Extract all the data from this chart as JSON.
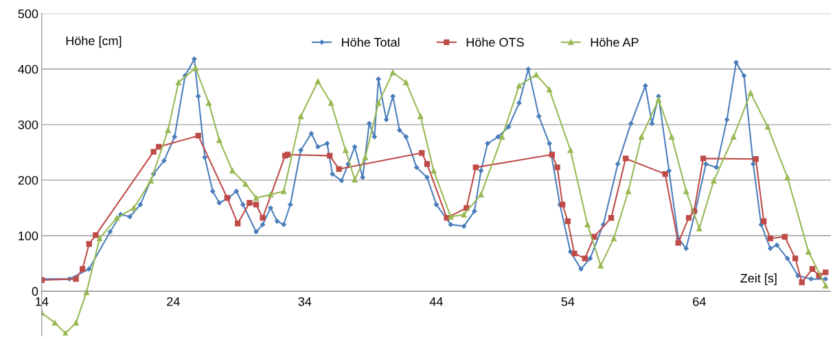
{
  "chart_data": {
    "type": "line",
    "xlabel": "Zeit [s]",
    "ylabel": "Höhe [cm]",
    "xlim": [
      14,
      74
    ],
    "xticks": [
      14,
      24,
      34,
      44,
      54,
      64
    ],
    "ylim": [
      -80,
      500
    ],
    "yticks": [
      0,
      100,
      200,
      300,
      400,
      500
    ],
    "grid": "y",
    "legend": "top",
    "series": [
      {
        "name": "Höhe Total",
        "color": "#4a7ebb",
        "marker": "diamond",
        "x": [
          14,
          16.1,
          17.6,
          19.2,
          20,
          20.7,
          21.5,
          22.5,
          23.3,
          24.1,
          24.9,
          25.6,
          25.9,
          26.4,
          27,
          27.5,
          28.2,
          28.8,
          29.3,
          30.3,
          30.8,
          31.4,
          31.9,
          32.4,
          32.9,
          33.7,
          34.5,
          35,
          35.7,
          36.1,
          36.8,
          37.3,
          37.8,
          38.4,
          38.9,
          39.3,
          39.6,
          40.2,
          40.7,
          41.2,
          41.7,
          42.5,
          43.3,
          44,
          45.1,
          46.1,
          46.9,
          47.4,
          47.9,
          48.7,
          49.5,
          50.3,
          51,
          51.8,
          52.6,
          53.4,
          54.2,
          55,
          55.7,
          56.7,
          57.8,
          58.8,
          59.9,
          60.4,
          60.9,
          61.7,
          62.4,
          63,
          63.7,
          64.5,
          65.3,
          66.1,
          66.8,
          67.4,
          68.1,
          68.7,
          69.4,
          69.9,
          70.7,
          71.5,
          72.5,
          73.6
        ],
        "values": [
          22,
          22,
          40,
          107,
          138,
          134,
          156,
          211,
          235,
          278,
          388,
          418,
          351,
          241,
          180,
          159,
          168,
          180,
          156,
          107,
          120,
          150,
          126,
          120,
          156,
          254,
          284,
          260,
          266,
          211,
          199,
          229,
          260,
          205,
          302,
          278,
          382,
          309,
          351,
          290,
          278,
          223,
          205,
          156,
          120,
          117,
          144,
          217,
          266,
          278,
          296,
          339,
          400,
          315,
          266,
          156,
          71,
          40,
          59,
          120,
          229,
          302,
          370,
          302,
          351,
          217,
          95,
          77,
          144,
          229,
          223,
          309,
          412,
          388,
          229,
          120,
          77,
          83,
          59,
          28,
          22,
          22
        ]
      },
      {
        "name": "Höhe OTS",
        "color": "#be4b48",
        "marker": "square",
        "x": [
          14,
          16.6,
          17.1,
          17.6,
          18.1,
          22.5,
          22.9,
          25.9,
          28.1,
          28.9,
          29.8,
          30.3,
          30.8,
          32.5,
          32.7,
          35.9,
          36.6,
          42.9,
          43.3,
          44.8,
          46.3,
          47,
          52.8,
          53.2,
          53.6,
          54,
          54.5,
          55.3,
          56,
          57.3,
          58.4,
          61.4,
          62.4,
          63.2,
          63.6,
          64.3,
          68.3,
          68.9,
          69.4,
          70.5,
          71.3,
          71.8,
          72.6,
          73.1,
          73.6
        ],
        "values": [
          20,
          22,
          40,
          85,
          101,
          251,
          260,
          280,
          168,
          122,
          159,
          156,
          132,
          244,
          246,
          244,
          220,
          249,
          229,
          132,
          150,
          223,
          246,
          223,
          156,
          126,
          68,
          59,
          98,
          132,
          239,
          211,
          87,
          132,
          144,
          239,
          238,
          126,
          95,
          98,
          59,
          16,
          40,
          28,
          34
        ]
      },
      {
        "name": "Höhe AP",
        "color": "#98b954",
        "marker": "triangle",
        "x": [
          14,
          15,
          15.8,
          16.6,
          17.4,
          18.4,
          19.7,
          21,
          22.3,
          23.6,
          24.4,
          25.7,
          26.7,
          27.5,
          28.5,
          29.5,
          30.3,
          31.4,
          32.4,
          33.7,
          35,
          36,
          37.1,
          37.8,
          38.6,
          39.6,
          40.7,
          41.7,
          42.8,
          43.8,
          45.1,
          46.1,
          47.4,
          49,
          50.3,
          51.6,
          52.6,
          54.2,
          55.5,
          56.5,
          57.5,
          58.6,
          59.6,
          60.9,
          61.9,
          63,
          64,
          65.1,
          66.6,
          67.9,
          69.2,
          70.7,
          72.3,
          73.6
        ],
        "values": [
          -39,
          -57,
          -76,
          -57,
          -2,
          95,
          132,
          150,
          199,
          290,
          376,
          402,
          339,
          272,
          217,
          193,
          168,
          174,
          180,
          315,
          378,
          339,
          254,
          201,
          241,
          339,
          394,
          376,
          315,
          217,
          134,
          138,
          174,
          278,
          370,
          390,
          363,
          254,
          120,
          46,
          95,
          180,
          278,
          345,
          278,
          180,
          113,
          199,
          278,
          357,
          296,
          205,
          71,
          10
        ]
      }
    ]
  }
}
